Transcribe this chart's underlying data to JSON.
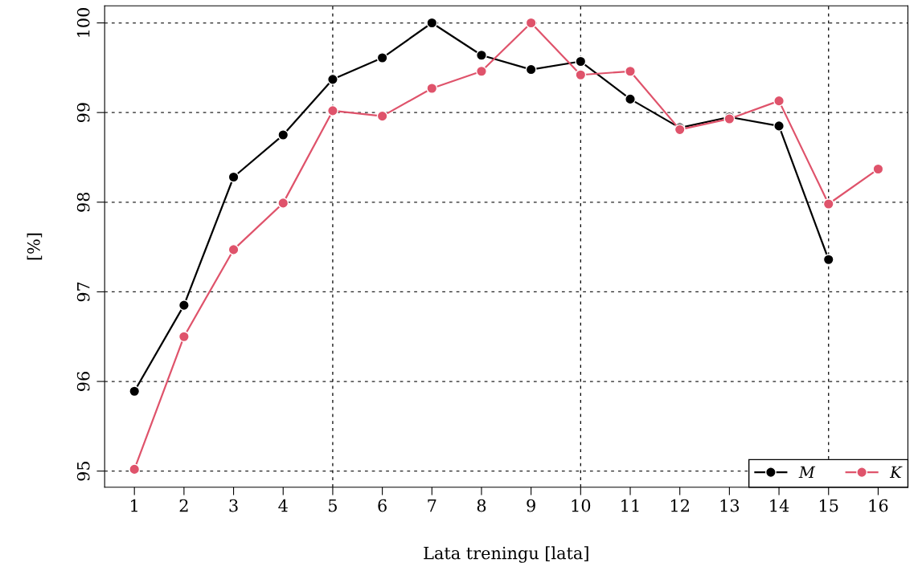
{
  "chart_data": {
    "type": "line",
    "xlabel": "Lata treningu [lata]",
    "ylabel": "[%]",
    "x": [
      1,
      2,
      3,
      4,
      5,
      6,
      7,
      8,
      9,
      10,
      11,
      12,
      13,
      14,
      15,
      16
    ],
    "xlim": [
      0.4,
      16.6
    ],
    "xticks": [
      1,
      2,
      3,
      4,
      5,
      6,
      7,
      8,
      9,
      10,
      11,
      12,
      13,
      14,
      15,
      16
    ],
    "ylim": [
      94.82,
      100.19
    ],
    "yticks": [
      95,
      96,
      97,
      98,
      99,
      100
    ],
    "grid": "y",
    "marker": "circle",
    "line_style": "solid",
    "legend": "bottom right",
    "ref_lines": [
      {
        "axis": "x",
        "value": 5,
        "line_style": "dotted",
        "color": "#000000"
      },
      {
        "axis": "x",
        "value": 10,
        "line_style": "dotted",
        "color": "#000000"
      },
      {
        "axis": "x",
        "value": 15,
        "line_style": "dotted",
        "color": "#000000"
      }
    ],
    "series": [
      {
        "name": "M",
        "color": "#000000",
        "values": [
          95.89,
          96.85,
          98.28,
          98.75,
          99.37,
          99.61,
          100.0,
          99.64,
          99.48,
          99.57,
          99.15,
          98.83,
          98.95,
          98.85,
          97.36,
          null
        ]
      },
      {
        "name": "K",
        "color": "#df536b",
        "values": [
          95.02,
          96.5,
          97.47,
          97.99,
          99.02,
          98.96,
          99.27,
          99.46,
          100.0,
          99.42,
          99.46,
          98.81,
          98.93,
          99.13,
          97.98,
          98.37
        ]
      }
    ]
  }
}
